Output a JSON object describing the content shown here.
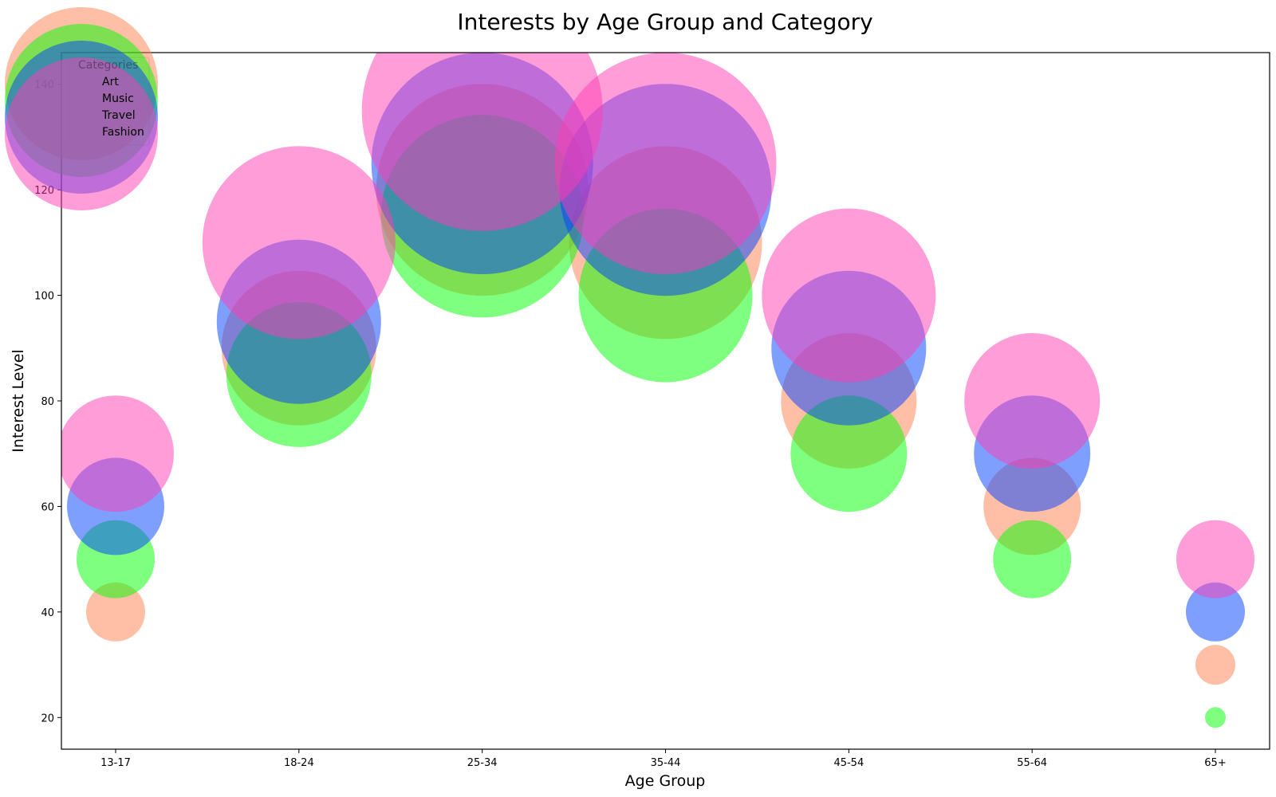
{
  "chart_data": {
    "type": "scatter",
    "variant": "bubble",
    "title": "Interests by Age Group and Category",
    "xlabel": "Age Group",
    "ylabel": "Interest Level",
    "categories": [
      "13-17",
      "18-24",
      "25-34",
      "35-44",
      "45-54",
      "55-64",
      "65+"
    ],
    "yticks": [
      20,
      40,
      60,
      80,
      100,
      120,
      140
    ],
    "ylim": [
      14,
      146
    ],
    "grid": false,
    "legend": {
      "title": "Categories",
      "placement": "top-left",
      "entries": [
        "Art",
        "Music",
        "Travel",
        "Fashion"
      ]
    },
    "series": [
      {
        "name": "Art",
        "color": "#FF7F50",
        "values": [
          40,
          90,
          120,
          110,
          80,
          60,
          30
        ]
      },
      {
        "name": "Music",
        "color": "#00FF00",
        "values": [
          50,
          85,
          115,
          100,
          70,
          50,
          20
        ]
      },
      {
        "name": "Travel",
        "color": "#0040FF",
        "values": [
          60,
          95,
          125,
          120,
          90,
          70,
          40
        ]
      },
      {
        "name": "Fashion",
        "color": "#FF3CB4",
        "values": [
          70,
          110,
          135,
          125,
          100,
          80,
          50
        ]
      }
    ]
  }
}
